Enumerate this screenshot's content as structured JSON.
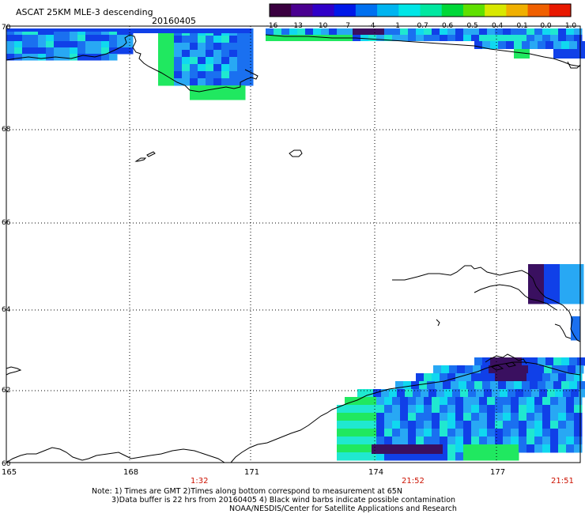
{
  "header": {
    "title": "ASCAT 25KM MLE-3 descending",
    "date": "20160405"
  },
  "colorbar": {
    "labels": [
      "-16",
      "-13",
      "-10",
      "-7",
      "-4",
      "-1",
      "-0.7",
      "-0.6",
      "-0.5",
      "-0.4",
      "-0.1",
      "0.0",
      "1.0"
    ],
    "colors": [
      "#3a0040",
      "#4a0090",
      "#3000c8",
      "#0018e8",
      "#0070f0",
      "#00b4f0",
      "#00e6e6",
      "#00e8a0",
      "#00d838",
      "#60e000",
      "#d8e800",
      "#f0b000",
      "#f06000",
      "#e81800"
    ]
  },
  "axes": {
    "lat_labels": [
      "70",
      "68",
      "66",
      "64",
      "62",
      "60"
    ],
    "lon_labels": [
      "165",
      "168",
      "171",
      "174",
      "177"
    ],
    "time_labels": [
      "1:32",
      "21:52",
      "21:51"
    ]
  },
  "notes": {
    "line1": "Note: 1) Times are GMT 2)Times along bottom correspond to measurement at 65N",
    "line2": "3)Data buffer is 22 hrs from 20160405 4) Black wind barbs indicate possible contamination",
    "line3": "NOAA/NESDIS/Center for Satellite Applications and Research"
  },
  "style": {
    "time_color": "#cc1100",
    "palette": {
      "dark_purple": "#3a1060",
      "blue": "#1040e8",
      "mid_blue": "#1a70f0",
      "light_blue": "#28a8f4",
      "cyan": "#10d8f0",
      "aqua": "#20e8d0",
      "green": "#20e860"
    }
  }
}
